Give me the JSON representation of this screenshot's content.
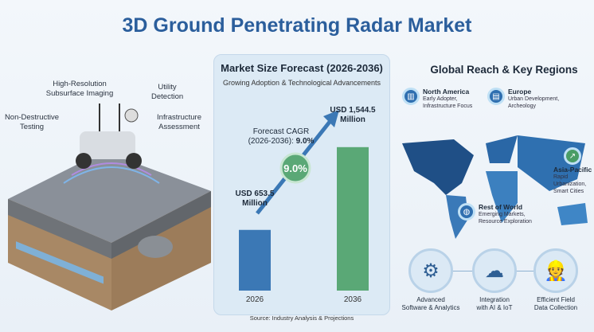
{
  "title": "3D Ground Penetrating Radar Market",
  "illustration": {
    "labels": [
      "High-Resolution Subsurface Imaging",
      "Utility Detection",
      "Non-Destructive Testing",
      "Infrastructure Assessment"
    ]
  },
  "forecast": {
    "title": "Market Size Forecast (2026-2036)",
    "subtitle": "Growing Adoption & Technological Advancements",
    "cagr_label_1": "Forecast CAGR",
    "cagr_label_2": "(2026-2036): ",
    "cagr_value": "9.0%",
    "badge": "9.0%",
    "value_2026": "USD 653.5",
    "value_2036": "USD 1,544.5",
    "unit": "Million",
    "source": "Source: Industry Analysis & Projections"
  },
  "chart_data": {
    "type": "bar",
    "title": "Market Size Forecast (2026-2036)",
    "categories": [
      "2026",
      "2036"
    ],
    "values": [
      653.5,
      1544.5
    ],
    "unit": "USD Million",
    "colors": [
      "#3b78b5",
      "#5aa876"
    ],
    "annotation": "Forecast CAGR (2026-2036): 9.0%"
  },
  "regions": {
    "title": "Global Reach & Key Regions",
    "items": [
      {
        "name": "North America",
        "desc1": "Early Adopter,",
        "desc2": "Infrastructure Focus"
      },
      {
        "name": "Europe",
        "desc1": "Urban Development,",
        "desc2": "Archeology"
      },
      {
        "name": "Asia-Pacific",
        "desc1": "Rapid Urbanization,",
        "desc2": "Smart Cities"
      },
      {
        "name": "Rest of World",
        "desc1": "Emerging Markets,",
        "desc2": "Resource Exploration"
      }
    ]
  },
  "features": [
    {
      "l1": "Advanced",
      "l2": "Software & Analytics",
      "icon": "gear-search-icon"
    },
    {
      "l1": "Integration",
      "l2": "with AI & IoT",
      "icon": "cloud-icon"
    },
    {
      "l1": "Efficient Field",
      "l2": "Data Collection",
      "icon": "worker-icon"
    }
  ]
}
